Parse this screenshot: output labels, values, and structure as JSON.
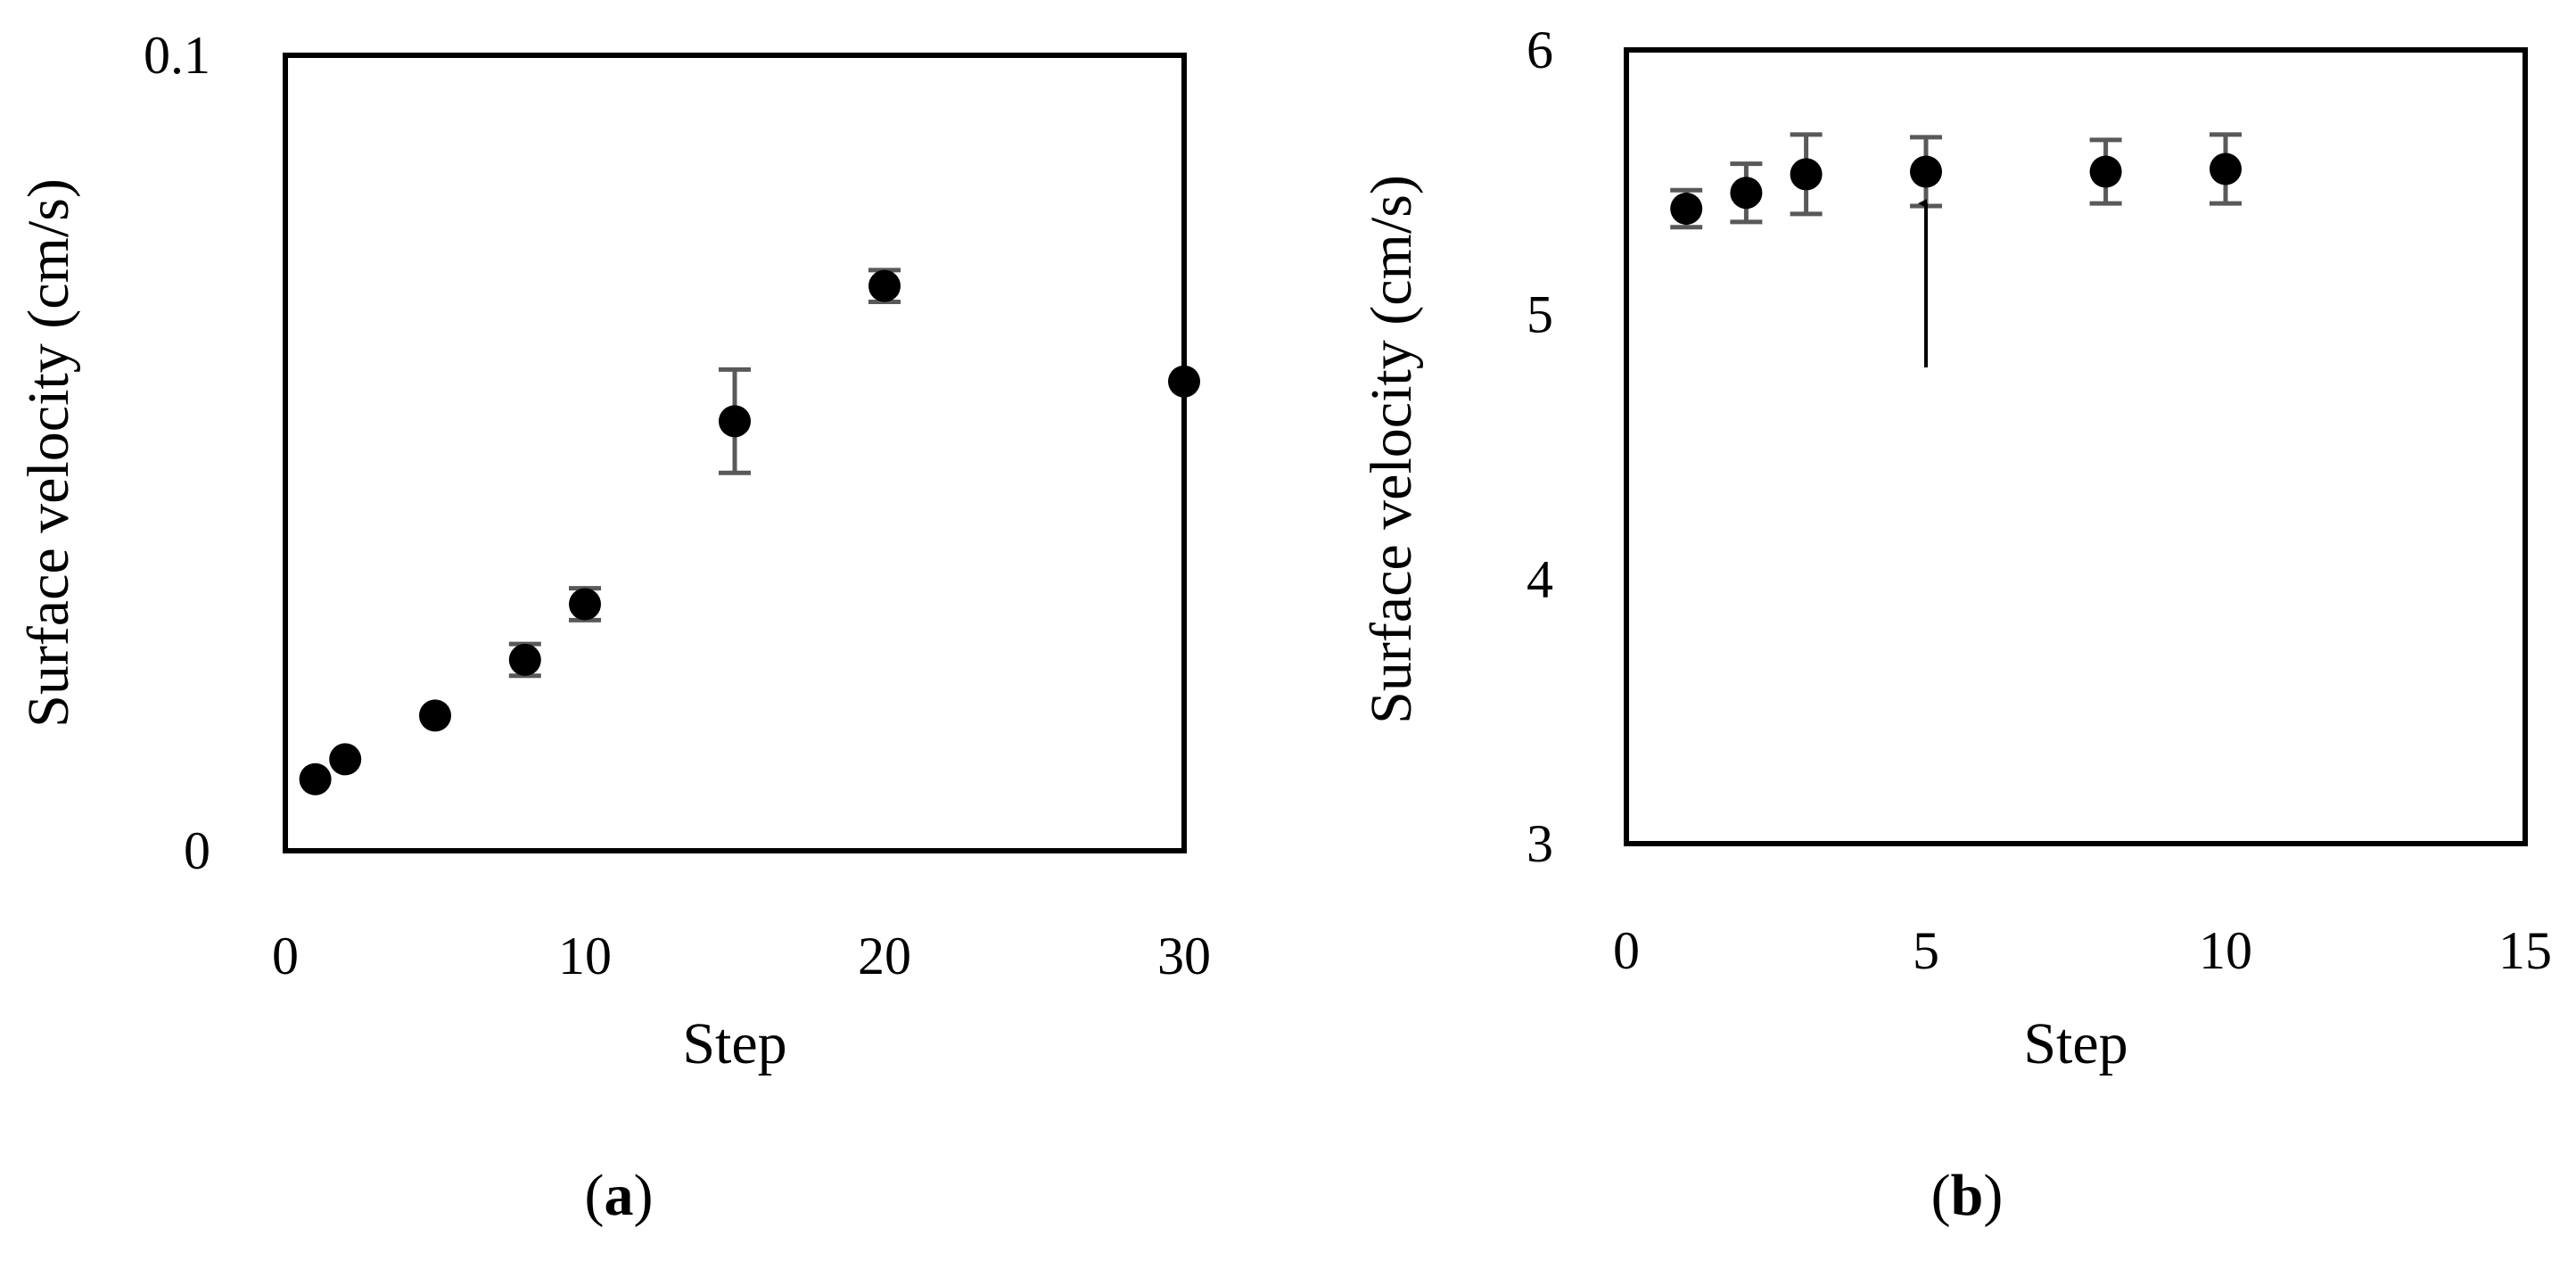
{
  "chart_data": [
    {
      "type": "scatter",
      "panel": "a",
      "caption_label": "a",
      "xlabel": "Step",
      "ylabel": "Surface velocity (cm/s)",
      "xlim": [
        0,
        30
      ],
      "ylim": [
        0,
        0.1
      ],
      "xticks": [
        "0",
        "10",
        "20",
        "30"
      ],
      "xtick_values": [
        0,
        10,
        20,
        30
      ],
      "yticks": [
        "0",
        "0.1"
      ],
      "ytick_values": [
        0,
        0.1
      ],
      "grid": false,
      "series": [
        {
          "x": [
            1,
            2,
            5,
            8,
            10,
            15,
            20,
            30
          ],
          "y": [
            0.009,
            0.0115,
            0.017,
            0.024,
            0.031,
            0.054,
            0.071,
            0.059
          ],
          "err": [
            0,
            0,
            0,
            0.002,
            0.002,
            0.0065,
            0.002,
            0
          ]
        }
      ]
    },
    {
      "type": "scatter",
      "panel": "b",
      "caption_label": "b",
      "xlabel": "Step",
      "ylabel": "Surface velocity (cm/s)",
      "xlim": [
        0,
        15
      ],
      "ylim": [
        3,
        6
      ],
      "xticks": [
        "0",
        "5",
        "10",
        "15"
      ],
      "xtick_values": [
        0,
        5,
        10,
        15
      ],
      "yticks": [
        "3",
        "4",
        "5",
        "6"
      ],
      "ytick_values": [
        3,
        4,
        5,
        6
      ],
      "grid": false,
      "annotation": {
        "type": "arrow",
        "x": 5,
        "y_tail": 4.8,
        "y_head": 5.42
      },
      "series": [
        {
          "x": [
            1,
            2,
            3,
            5,
            8,
            10
          ],
          "y": [
            5.4,
            5.46,
            5.53,
            5.54,
            5.54,
            5.55
          ],
          "err": [
            0.07,
            0.11,
            0.15,
            0.13,
            0.12,
            0.13
          ]
        }
      ]
    }
  ],
  "colors": {
    "marker": "#000000",
    "errorbar": "#595959",
    "frame": "#000000"
  }
}
